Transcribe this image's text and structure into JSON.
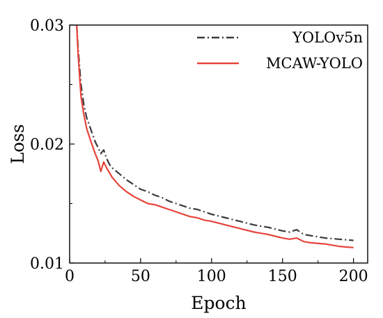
{
  "chart_data": {
    "type": "line",
    "title": "",
    "xlabel": "Epoch",
    "ylabel": "Loss",
    "xlim": [
      0,
      210
    ],
    "ylim": [
      0.01,
      0.03
    ],
    "xticks": [
      0,
      50,
      100,
      150,
      200
    ],
    "xtick_labels": [
      "0",
      "50",
      "100",
      "150",
      "200"
    ],
    "yticks": [
      0.01,
      0.02,
      0.03
    ],
    "ytick_labels": [
      "0.01",
      "0.02",
      "0.03"
    ],
    "grid": false,
    "legend_position": "top-right",
    "series": [
      {
        "name": "YOLOv5n",
        "color": "#3a3a3a",
        "dash": "dash-dot",
        "x": [
          5,
          6,
          8,
          10,
          12,
          15,
          18,
          20,
          22,
          24,
          26,
          28,
          30,
          35,
          40,
          45,
          50,
          55,
          60,
          65,
          70,
          75,
          80,
          85,
          90,
          95,
          100,
          110,
          120,
          130,
          140,
          150,
          155,
          160,
          165,
          170,
          180,
          190,
          200
        ],
        "y": [
          0.03,
          0.028,
          0.025,
          0.0233,
          0.0222,
          0.0212,
          0.0202,
          0.0197,
          0.0192,
          0.0195,
          0.0188,
          0.0183,
          0.018,
          0.0175,
          0.017,
          0.0166,
          0.0162,
          0.016,
          0.0157,
          0.0155,
          0.0152,
          0.015,
          0.0148,
          0.0146,
          0.0145,
          0.0143,
          0.0141,
          0.0138,
          0.0135,
          0.0132,
          0.013,
          0.0127,
          0.0126,
          0.0128,
          0.0124,
          0.0123,
          0.0121,
          0.012,
          0.0119
        ]
      },
      {
        "name": "MCAW-YOLO",
        "color": "#e8433a",
        "dash": "solid",
        "x": [
          5,
          6,
          8,
          10,
          12,
          15,
          18,
          20,
          22,
          24,
          26,
          28,
          30,
          35,
          40,
          45,
          50,
          55,
          60,
          65,
          70,
          75,
          80,
          85,
          90,
          95,
          100,
          110,
          120,
          130,
          140,
          150,
          155,
          160,
          165,
          170,
          180,
          190,
          200
        ],
        "y": [
          0.03,
          0.0275,
          0.024,
          0.0225,
          0.0213,
          0.0202,
          0.0192,
          0.0186,
          0.0177,
          0.0185,
          0.018,
          0.0176,
          0.0172,
          0.0165,
          0.016,
          0.0156,
          0.0153,
          0.015,
          0.0149,
          0.0147,
          0.0145,
          0.0143,
          0.0141,
          0.0139,
          0.0138,
          0.0136,
          0.0135,
          0.0132,
          0.0129,
          0.0126,
          0.0124,
          0.0121,
          0.012,
          0.0121,
          0.0118,
          0.0117,
          0.0116,
          0.0114,
          0.0113
        ]
      }
    ]
  }
}
